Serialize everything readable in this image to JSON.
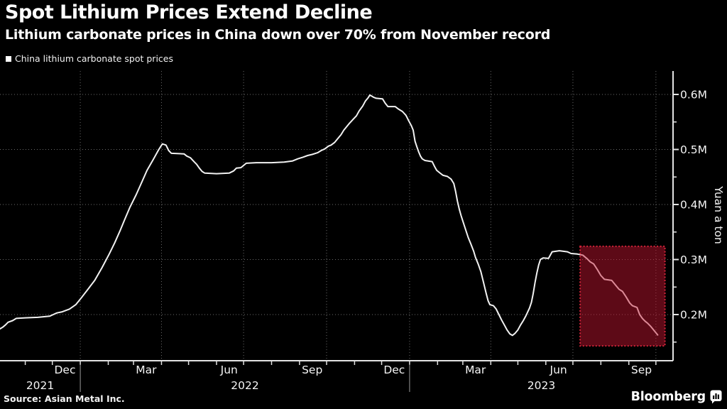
{
  "header": {
    "title": "Spot Lithium Prices Extend Decline",
    "subtitle": "Lithium carbonate prices in China down over 70% from November record"
  },
  "legend": {
    "marker": "square-icon",
    "label": "China lithium carbonate spot prices",
    "color": "#ffffff"
  },
  "source": "Source: Asian Metal Inc.",
  "branding": {
    "logo_text": "Bloomberg",
    "logo_icon": "bloomberg-bars-icon"
  },
  "colors": {
    "background": "#000000",
    "text": "#ffffff",
    "line": "#f2f2f2",
    "grid": "#6b6b6b",
    "axis": "#e3e3e3",
    "tick_label": "#f5f5f5",
    "highlight_fill": "rgba(198,22,48,0.47)",
    "highlight_border": "#cf2339",
    "year_separator": "#9a9a9a"
  },
  "chart_data": {
    "type": "line",
    "series_name": "China lithium carbonate spot prices",
    "ylabel": "Yuan a ton",
    "grid": true,
    "legend_position": "top-left",
    "y_axis": {
      "side": "right",
      "ticks": [
        {
          "label": "0.2M",
          "value": 0.2
        },
        {
          "label": "0.3M",
          "value": 0.3
        },
        {
          "label": "0.4M",
          "value": 0.4
        },
        {
          "label": "0.5M",
          "value": 0.5
        },
        {
          "label": "0.6M",
          "value": 0.6
        }
      ],
      "minor_ticks": [
        0.15,
        0.25,
        0.35,
        0.45,
        0.55
      ],
      "visible_range": [
        0.116,
        0.643
      ]
    },
    "x_axis": {
      "domain": [
        "2021-10-04",
        "2023-10-20"
      ],
      "tick_interval": "month",
      "grid_dates": [
        "2022-01-01",
        "2022-04-01",
        "2022-07-01",
        "2022-10-01",
        "2023-01-01",
        "2023-04-01",
        "2023-07-01",
        "2023-10-01"
      ],
      "month_labels": [
        {
          "label": "Dec",
          "date": "2021-12-15"
        },
        {
          "label": "Mar",
          "date": "2022-03-15"
        },
        {
          "label": "Jun",
          "date": "2022-06-15"
        },
        {
          "label": "Sep",
          "date": "2022-09-15"
        },
        {
          "label": "Dec",
          "date": "2022-12-15"
        },
        {
          "label": "Mar",
          "date": "2023-03-15"
        },
        {
          "label": "Jun",
          "date": "2023-06-15"
        },
        {
          "label": "Sep",
          "date": "2023-09-15"
        }
      ],
      "year_labels": [
        {
          "label": "2021",
          "span": [
            "2021-10-04",
            "2022-01-01"
          ]
        },
        {
          "label": "2022",
          "span": [
            "2022-01-01",
            "2023-01-01"
          ]
        },
        {
          "label": "2023",
          "span": [
            "2023-01-01",
            "2023-10-20"
          ]
        }
      ],
      "year_separators": [
        "2022-01-01",
        "2023-01-01"
      ]
    },
    "highlight_box": {
      "from": "2023-07-09",
      "to": "2023-10-11",
      "top": 0.324,
      "bottom": 0.143
    },
    "points": [
      [
        "2021-10-04",
        0.174
      ],
      [
        "2021-10-07",
        0.177
      ],
      [
        "2021-10-10",
        0.181
      ],
      [
        "2021-10-13",
        0.186
      ],
      [
        "2021-10-18",
        0.189
      ],
      [
        "2021-10-22",
        0.193
      ],
      [
        "2021-11-01",
        0.194
      ],
      [
        "2021-11-15",
        0.195
      ],
      [
        "2021-11-28",
        0.197
      ],
      [
        "2021-12-02",
        0.2
      ],
      [
        "2021-12-06",
        0.203
      ],
      [
        "2021-12-12",
        0.205
      ],
      [
        "2021-12-20",
        0.21
      ],
      [
        "2021-12-27",
        0.218
      ],
      [
        "2022-01-01",
        0.228
      ],
      [
        "2022-01-09",
        0.245
      ],
      [
        "2022-01-17",
        0.262
      ],
      [
        "2022-01-25",
        0.285
      ],
      [
        "2022-02-02",
        0.31
      ],
      [
        "2022-02-08",
        0.33
      ],
      [
        "2022-02-14",
        0.352
      ],
      [
        "2022-02-19",
        0.372
      ],
      [
        "2022-02-25",
        0.395
      ],
      [
        "2022-03-04",
        0.418
      ],
      [
        "2022-03-10",
        0.44
      ],
      [
        "2022-03-16",
        0.462
      ],
      [
        "2022-03-23",
        0.482
      ],
      [
        "2022-03-29",
        0.5
      ],
      [
        "2022-04-02",
        0.51
      ],
      [
        "2022-04-06",
        0.508
      ],
      [
        "2022-04-09",
        0.498
      ],
      [
        "2022-04-12",
        0.493
      ],
      [
        "2022-04-26",
        0.492
      ],
      [
        "2022-04-29",
        0.488
      ],
      [
        "2022-05-03",
        0.485
      ],
      [
        "2022-05-07",
        0.478
      ],
      [
        "2022-05-10",
        0.473
      ],
      [
        "2022-05-13",
        0.466
      ],
      [
        "2022-05-16",
        0.46
      ],
      [
        "2022-05-19",
        0.457
      ],
      [
        "2022-06-01",
        0.456
      ],
      [
        "2022-06-15",
        0.457
      ],
      [
        "2022-06-20",
        0.461
      ],
      [
        "2022-06-23",
        0.466
      ],
      [
        "2022-06-28",
        0.467
      ],
      [
        "2022-07-01",
        0.471
      ],
      [
        "2022-07-04",
        0.475
      ],
      [
        "2022-07-15",
        0.476
      ],
      [
        "2022-08-01",
        0.476
      ],
      [
        "2022-08-15",
        0.477
      ],
      [
        "2022-08-24",
        0.479
      ],
      [
        "2022-08-30",
        0.483
      ],
      [
        "2022-09-05",
        0.486
      ],
      [
        "2022-09-10",
        0.489
      ],
      [
        "2022-09-15",
        0.491
      ],
      [
        "2022-09-21",
        0.494
      ],
      [
        "2022-09-25",
        0.498
      ],
      [
        "2022-09-29",
        0.501
      ],
      [
        "2022-10-03",
        0.506
      ],
      [
        "2022-10-06",
        0.508
      ],
      [
        "2022-10-10",
        0.513
      ],
      [
        "2022-10-13",
        0.519
      ],
      [
        "2022-10-17",
        0.527
      ],
      [
        "2022-10-20",
        0.535
      ],
      [
        "2022-10-23",
        0.541
      ],
      [
        "2022-10-26",
        0.547
      ],
      [
        "2022-10-30",
        0.554
      ],
      [
        "2022-11-03",
        0.561
      ],
      [
        "2022-11-06",
        0.57
      ],
      [
        "2022-11-10",
        0.579
      ],
      [
        "2022-11-13",
        0.588
      ],
      [
        "2022-11-16",
        0.594
      ],
      [
        "2022-11-18",
        0.599
      ],
      [
        "2022-11-22",
        0.595
      ],
      [
        "2022-11-25",
        0.593
      ],
      [
        "2022-12-02",
        0.592
      ],
      [
        "2022-12-05",
        0.584
      ],
      [
        "2022-12-08",
        0.578
      ],
      [
        "2022-12-16",
        0.578
      ],
      [
        "2022-12-20",
        0.573
      ],
      [
        "2022-12-24",
        0.569
      ],
      [
        "2022-12-28",
        0.562
      ],
      [
        "2022-12-31",
        0.552
      ],
      [
        "2023-01-03",
        0.543
      ],
      [
        "2023-01-05",
        0.535
      ],
      [
        "2023-01-07",
        0.515
      ],
      [
        "2023-01-09",
        0.505
      ],
      [
        "2023-01-11",
        0.496
      ],
      [
        "2023-01-13",
        0.488
      ],
      [
        "2023-01-15",
        0.483
      ],
      [
        "2023-01-18",
        0.48
      ],
      [
        "2023-01-26",
        0.478
      ],
      [
        "2023-01-29",
        0.468
      ],
      [
        "2023-01-31",
        0.462
      ],
      [
        "2023-02-03",
        0.458
      ],
      [
        "2023-02-07",
        0.453
      ],
      [
        "2023-02-12",
        0.451
      ],
      [
        "2023-02-16",
        0.446
      ],
      [
        "2023-02-19",
        0.438
      ],
      [
        "2023-02-21",
        0.424
      ],
      [
        "2023-02-23",
        0.406
      ],
      [
        "2023-02-25",
        0.392
      ],
      [
        "2023-02-27",
        0.38
      ],
      [
        "2023-03-01",
        0.37
      ],
      [
        "2023-03-04",
        0.355
      ],
      [
        "2023-03-07",
        0.34
      ],
      [
        "2023-03-10",
        0.328
      ],
      [
        "2023-03-13",
        0.315
      ],
      [
        "2023-03-15",
        0.304
      ],
      [
        "2023-03-18",
        0.292
      ],
      [
        "2023-03-21",
        0.278
      ],
      [
        "2023-03-24",
        0.258
      ],
      [
        "2023-03-27",
        0.238
      ],
      [
        "2023-03-29",
        0.225
      ],
      [
        "2023-03-31",
        0.218
      ],
      [
        "2023-04-04",
        0.216
      ],
      [
        "2023-04-07",
        0.21
      ],
      [
        "2023-04-10",
        0.2
      ],
      [
        "2023-04-13",
        0.19
      ],
      [
        "2023-04-16",
        0.181
      ],
      [
        "2023-04-19",
        0.172
      ],
      [
        "2023-04-22",
        0.165
      ],
      [
        "2023-04-25",
        0.162
      ],
      [
        "2023-04-28",
        0.166
      ],
      [
        "2023-05-01",
        0.172
      ],
      [
        "2023-05-04",
        0.181
      ],
      [
        "2023-05-07",
        0.189
      ],
      [
        "2023-05-10",
        0.198
      ],
      [
        "2023-05-12",
        0.205
      ],
      [
        "2023-05-14",
        0.212
      ],
      [
        "2023-05-16",
        0.222
      ],
      [
        "2023-05-18",
        0.238
      ],
      [
        "2023-05-20",
        0.258
      ],
      [
        "2023-05-22",
        0.275
      ],
      [
        "2023-05-24",
        0.29
      ],
      [
        "2023-05-26",
        0.3
      ],
      [
        "2023-05-29",
        0.303
      ],
      [
        "2023-06-04",
        0.302
      ],
      [
        "2023-06-08",
        0.314
      ],
      [
        "2023-06-16",
        0.316
      ],
      [
        "2023-06-25",
        0.314
      ],
      [
        "2023-06-29",
        0.311
      ],
      [
        "2023-07-06",
        0.31
      ],
      [
        "2023-07-12",
        0.308
      ],
      [
        "2023-07-17",
        0.301
      ],
      [
        "2023-07-20",
        0.296
      ],
      [
        "2023-07-24",
        0.292
      ],
      [
        "2023-07-28",
        0.282
      ],
      [
        "2023-08-01",
        0.271
      ],
      [
        "2023-08-05",
        0.264
      ],
      [
        "2023-08-13",
        0.262
      ],
      [
        "2023-08-17",
        0.254
      ],
      [
        "2023-08-21",
        0.246
      ],
      [
        "2023-08-25",
        0.242
      ],
      [
        "2023-08-29",
        0.232
      ],
      [
        "2023-09-02",
        0.221
      ],
      [
        "2023-09-05",
        0.216
      ],
      [
        "2023-09-10",
        0.213
      ],
      [
        "2023-09-13",
        0.2
      ],
      [
        "2023-09-16",
        0.193
      ],
      [
        "2023-09-19",
        0.188
      ],
      [
        "2023-09-22",
        0.184
      ],
      [
        "2023-09-25",
        0.179
      ],
      [
        "2023-09-28",
        0.173
      ],
      [
        "2023-10-01",
        0.167
      ],
      [
        "2023-10-03",
        0.163
      ]
    ]
  }
}
